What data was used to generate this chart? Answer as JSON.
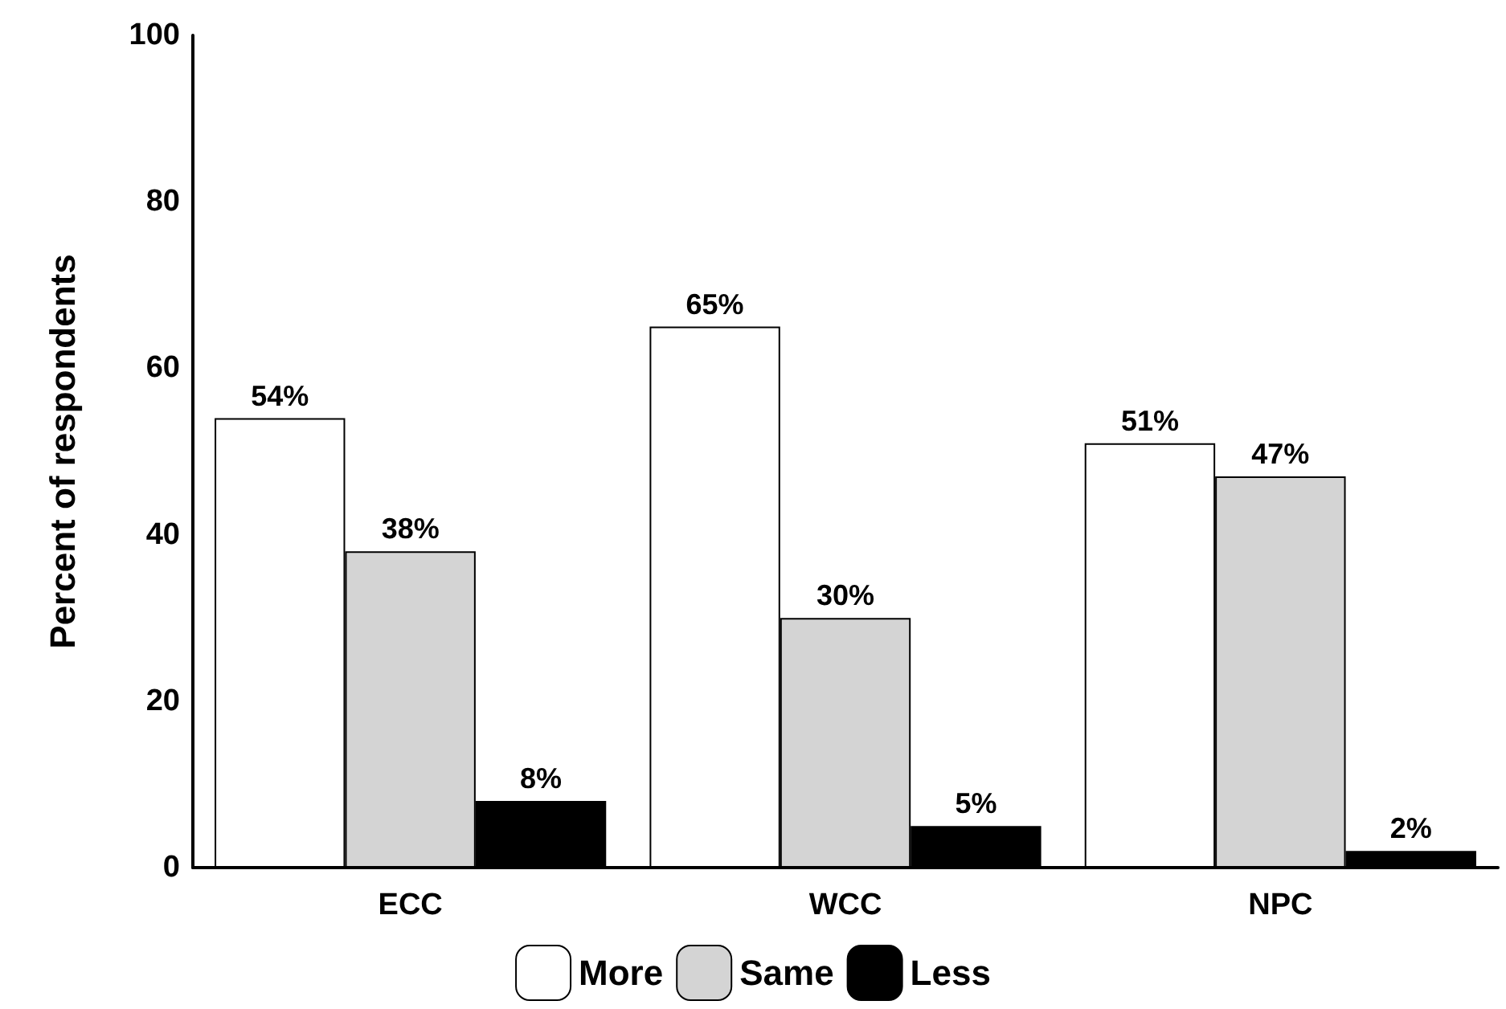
{
  "chart_data": {
    "type": "bar",
    "ylabel": "Percent of respondents",
    "categories": [
      "ECC",
      "WCC",
      "NPC"
    ],
    "series": [
      {
        "name": "More",
        "color": "#ffffff",
        "values": [
          54,
          65,
          51
        ],
        "value_labels": [
          "54%",
          "65%",
          "51%"
        ]
      },
      {
        "name": "Same",
        "color": "#d4d4d4",
        "values": [
          38,
          30,
          47
        ],
        "value_labels": [
          "38%",
          "30%",
          "47%"
        ]
      },
      {
        "name": "Less",
        "color": "#000000",
        "values": [
          8,
          5,
          2
        ],
        "value_labels": [
          "8%",
          "5%",
          "2%"
        ]
      }
    ],
    "ylim": [
      0,
      100
    ],
    "yticks": [
      0,
      20,
      40,
      60,
      80,
      100
    ],
    "grid": false,
    "legend": "bottom"
  }
}
